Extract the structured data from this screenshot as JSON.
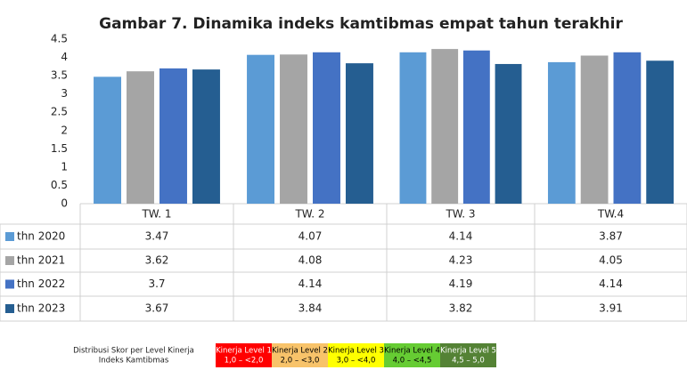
{
  "chart_data": {
    "type": "bar",
    "title": "Gambar 7. Dinamika indeks kamtibmas empat tahun terakhir",
    "categories": [
      "TW. 1",
      "TW. 2",
      "TW. 3",
      "TW.4"
    ],
    "series": [
      {
        "name": "thn 2020",
        "color": "#5b9bd5",
        "values": [
          3.47,
          4.07,
          4.14,
          3.87
        ]
      },
      {
        "name": "thn 2021",
        "color": "#a5a5a5",
        "values": [
          3.62,
          4.08,
          4.23,
          4.05
        ]
      },
      {
        "name": "thn 2022",
        "color": "#4472c4",
        "values": [
          3.7,
          4.14,
          4.19,
          4.14
        ]
      },
      {
        "name": "thn 2023",
        "color": "#255e91",
        "values": [
          3.67,
          3.84,
          3.82,
          3.91
        ]
      }
    ],
    "ylim": [
      0,
      4.5
    ],
    "yticks": [
      0,
      0.5,
      1,
      1.5,
      2,
      2.5,
      3,
      3.5,
      4,
      4.5
    ],
    "grid": false
  },
  "footer": {
    "title": [
      "Distribusi Skor per Level Kinerja",
      "Indeks Kamtibmas"
    ],
    "levels": [
      {
        "label": "Kinerja Level 1",
        "range": "1,0 – <2,0",
        "color": "#ff0000",
        "text_color": "#ffffff"
      },
      {
        "label": "Kinerja Level 2",
        "range": "2,0 – <3,0",
        "color": "#f8c36a",
        "text_color": "#000000"
      },
      {
        "label": "Kinerja Level 3",
        "range": "3,0 – <4,0",
        "color": "#ffff00",
        "text_color": "#000000"
      },
      {
        "label": "Kinerja Level 4",
        "range": "4,0 – <4,5",
        "color": "#66cc33",
        "text_color": "#000000"
      },
      {
        "label": "Kinerja Level 5",
        "range": "4,5 – 5,0",
        "color": "#548235",
        "text_color": "#ffffff"
      }
    ]
  }
}
